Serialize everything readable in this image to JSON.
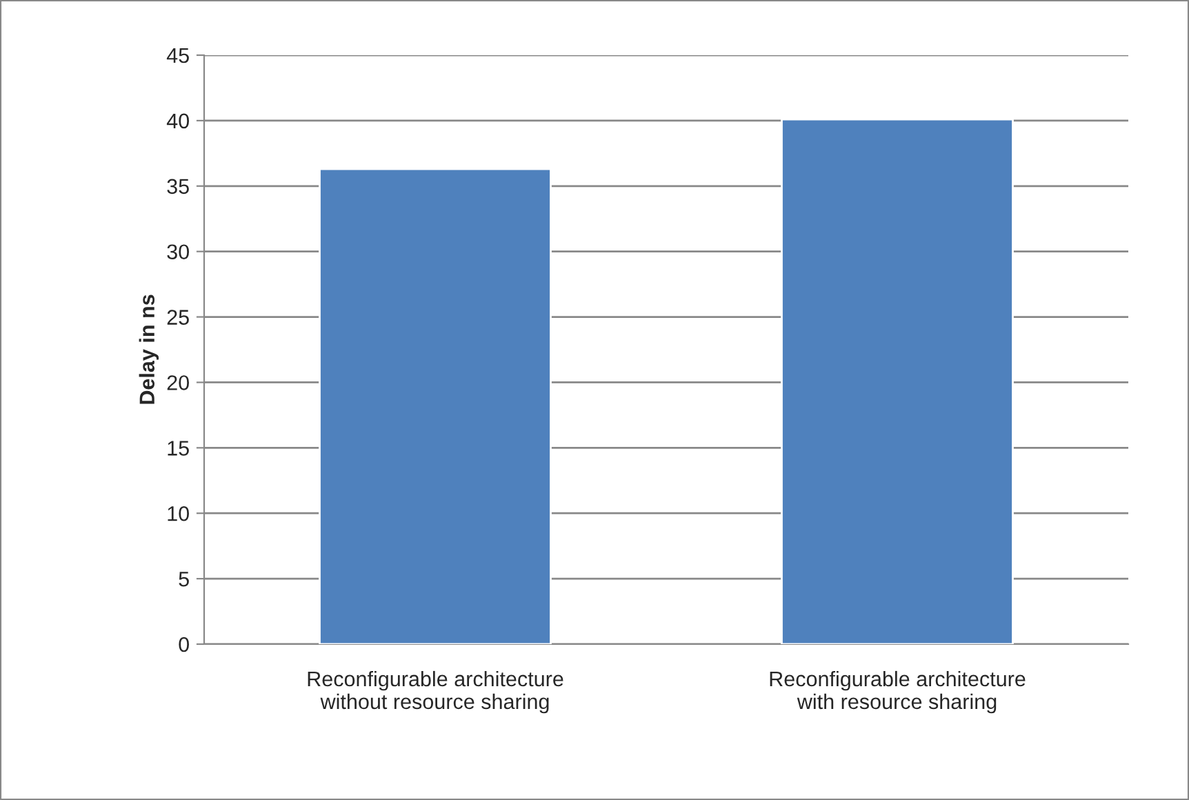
{
  "chart_data": {
    "type": "bar",
    "ylabel": "Delay in ns",
    "categories": [
      "Reconfigurable architecture without resource sharing",
      "Reconfigurable architecture with resource sharing"
    ],
    "values": [
      36.3,
      40.1
    ],
    "color": "#4f81bd",
    "ylim": [
      0,
      45
    ],
    "yticks": [
      0,
      5,
      10,
      15,
      20,
      25,
      30,
      35,
      40,
      45
    ],
    "grid": "y",
    "legend": false
  }
}
